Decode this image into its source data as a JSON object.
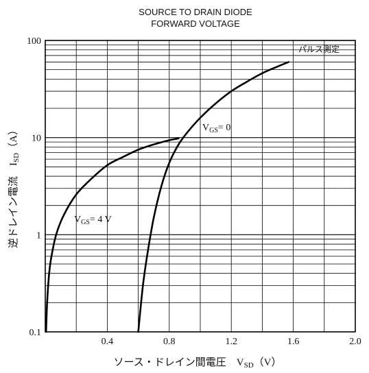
{
  "chart_data": {
    "type": "line",
    "title_lines": [
      "SOURCE TO DRAIN DIODE",
      "FORWARD VOLTAGE"
    ],
    "xlabel": "ソース・ドレイン間電圧　V",
    "xlabel_sub": "SD",
    "xlabel_unit": "（V）",
    "ylabel": "逆ドレイン電流　I",
    "ylabel_sub": "SD",
    "ylabel_unit": "（A）",
    "xlim": [
      0,
      2.0
    ],
    "ylim": [
      0.1,
      100
    ],
    "yscale": "log",
    "x_ticks": [
      "0.4",
      "0.8",
      "1.2",
      "1.6",
      "2.0"
    ],
    "x_tick_values": [
      0.4,
      0.8,
      1.2,
      1.6,
      2.0
    ],
    "y_ticks": [
      "0.1",
      "1",
      "10",
      "100"
    ],
    "y_tick_values": [
      0.1,
      1,
      10,
      100
    ],
    "grid": true,
    "note": "パルス測定",
    "series": [
      {
        "label_main": "V",
        "label_sub": "GS",
        "label_rest": "= 4 V",
        "points": [
          [
            0.005,
            0.1
          ],
          [
            0.012,
            0.2
          ],
          [
            0.025,
            0.4
          ],
          [
            0.04,
            0.6
          ],
          [
            0.07,
            1.0
          ],
          [
            0.12,
            1.6
          ],
          [
            0.2,
            2.6
          ],
          [
            0.3,
            3.8
          ],
          [
            0.4,
            5.2
          ],
          [
            0.5,
            6.3
          ],
          [
            0.6,
            7.5
          ],
          [
            0.7,
            8.5
          ],
          [
            0.8,
            9.4
          ],
          [
            0.86,
            9.8
          ]
        ]
      },
      {
        "label_main": "V",
        "label_sub": "GS",
        "label_rest": "= 0",
        "points": [
          [
            0.6,
            0.1
          ],
          [
            0.63,
            0.3
          ],
          [
            0.66,
            0.65
          ],
          [
            0.7,
            1.5
          ],
          [
            0.75,
            3.2
          ],
          [
            0.8,
            5.5
          ],
          [
            0.86,
            8.5
          ],
          [
            0.92,
            11.5
          ],
          [
            1.0,
            16
          ],
          [
            1.1,
            22.5
          ],
          [
            1.2,
            30
          ],
          [
            1.3,
            37.5
          ],
          [
            1.4,
            46
          ],
          [
            1.5,
            54
          ],
          [
            1.57,
            60
          ]
        ]
      }
    ]
  }
}
